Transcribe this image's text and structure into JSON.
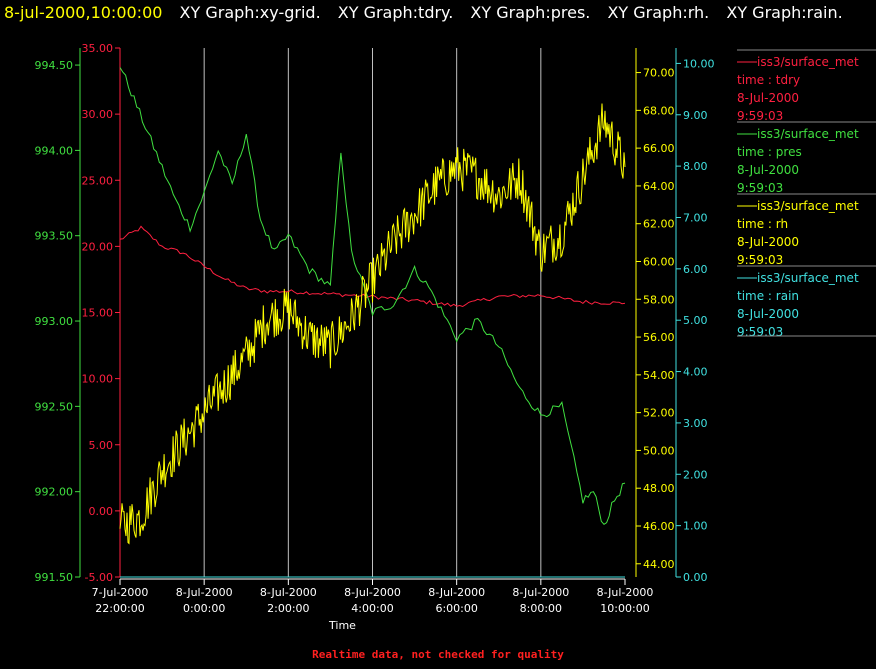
{
  "header": {
    "timestamp": "8-jul-2000,10:00:00",
    "graphs": [
      "XY Graph:xy-grid.",
      "XY Graph:tdry.",
      "XY Graph:pres.",
      "XY Graph:rh.",
      "XY Graph:rain."
    ]
  },
  "footer": {
    "text": "Realtime data, not checked for quality"
  },
  "colors": {
    "tdry": "#ff2040",
    "pres": "#40e040",
    "rh": "#ffff00",
    "rain": "#40e0e0",
    "grid": "#c0c0c0"
  },
  "legend": [
    {
      "source": "iss3/surface_met",
      "label": "time : tdry",
      "date": "8-Jul-2000",
      "time": "9:59:03",
      "color": "#ff2040"
    },
    {
      "source": "iss3/surface_met",
      "label": "time : pres",
      "date": "8-Jul-2000",
      "time": "9:59:03",
      "color": "#40e040"
    },
    {
      "source": "iss3/surface_met",
      "label": "time : rh",
      "date": "8-Jul-2000",
      "time": "9:59:03",
      "color": "#ffff00"
    },
    {
      "source": "iss3/surface_met",
      "label": "time : rain",
      "date": "8-Jul-2000",
      "time": "9:59:03",
      "color": "#40e0e0"
    }
  ],
  "chart_data": {
    "type": "line",
    "xlabel": "Time",
    "xlim": [
      "7-Jul-2000 22:00:00",
      "8-Jul-2000 10:00:00"
    ],
    "x_ticks": [
      {
        "date": "7-Jul-2000",
        "time": "22:00:00"
      },
      {
        "date": "8-Jul-2000",
        "time": "0:00:00"
      },
      {
        "date": "8-Jul-2000",
        "time": "2:00:00"
      },
      {
        "date": "8-Jul-2000",
        "time": "4:00:00"
      },
      {
        "date": "8-Jul-2000",
        "time": "6:00:00"
      },
      {
        "date": "8-Jul-2000",
        "time": "8:00:00"
      },
      {
        "date": "8-Jul-2000",
        "time": "10:00:00"
      }
    ],
    "grid": true,
    "axes": [
      {
        "name": "tdry",
        "ylim": [
          -5,
          35
        ],
        "ticks": [
          "-5.00",
          "0.00",
          "5.00",
          "10.00",
          "15.00",
          "20.00",
          "25.00",
          "30.00",
          "35.00"
        ]
      },
      {
        "name": "pres",
        "ylim": [
          991.5,
          994.6
        ],
        "ticks": [
          "991.50",
          "992.00",
          "992.50",
          "993.00",
          "993.50",
          "994.00",
          "994.50"
        ]
      },
      {
        "name": "rh",
        "ylim": [
          43.3,
          71.3
        ],
        "ticks": [
          "44.00",
          "46.00",
          "48.00",
          "50.00",
          "52.00",
          "54.00",
          "56.00",
          "58.00",
          "60.00",
          "62.00",
          "64.00",
          "66.00",
          "68.00",
          "70.00"
        ]
      },
      {
        "name": "rain",
        "ylim": [
          0,
          10.3
        ],
        "ticks": [
          "0.00",
          "1.00",
          "2.00",
          "3.00",
          "4.00",
          "5.00",
          "6.00",
          "7.00",
          "8.00",
          "9.00",
          "10.00"
        ]
      }
    ],
    "series": [
      {
        "name": "tdry",
        "axis": "tdry",
        "x": [
          "7-Jul-2000 22:00:00",
          "7-Jul-2000 22:30:00",
          "7-Jul-2000 23:00:00",
          "7-Jul-2000 23:30:00",
          "8-Jul-2000 00:00:00",
          "8-Jul-2000 00:30:00",
          "8-Jul-2000 01:00:00",
          "8-Jul-2000 01:30:00",
          "8-Jul-2000 02:00:00",
          "8-Jul-2000 03:00:00",
          "8-Jul-2000 04:00:00",
          "8-Jul-2000 05:00:00",
          "8-Jul-2000 06:00:00",
          "8-Jul-2000 07:00:00",
          "8-Jul-2000 08:00:00",
          "8-Jul-2000 09:00:00",
          "8-Jul-2000 10:00:00"
        ],
        "y": [
          20.5,
          21.4,
          20.0,
          19.5,
          18.5,
          17.5,
          16.8,
          16.6,
          16.6,
          16.4,
          16.2,
          15.9,
          15.5,
          16.2,
          16.3,
          15.8,
          15.7
        ]
      },
      {
        "name": "pres",
        "axis": "pres",
        "x": [
          "7-Jul-2000 22:00:00",
          "7-Jul-2000 22:20:00",
          "7-Jul-2000 22:40:00",
          "7-Jul-2000 23:00:00",
          "7-Jul-2000 23:20:00",
          "7-Jul-2000 23:40:00",
          "8-Jul-2000 00:00:00",
          "8-Jul-2000 00:20:00",
          "8-Jul-2000 00:40:00",
          "8-Jul-2000 01:00:00",
          "8-Jul-2000 01:20:00",
          "8-Jul-2000 01:40:00",
          "8-Jul-2000 02:00:00",
          "8-Jul-2000 02:30:00",
          "8-Jul-2000 03:00:00",
          "8-Jul-2000 03:15:00",
          "8-Jul-2000 03:30:00",
          "8-Jul-2000 04:00:00",
          "8-Jul-2000 04:30:00",
          "8-Jul-2000 05:00:00",
          "8-Jul-2000 05:20:00",
          "8-Jul-2000 06:00:00",
          "8-Jul-2000 06:30:00",
          "8-Jul-2000 07:00:00",
          "8-Jul-2000 07:30:00",
          "8-Jul-2000 08:00:00",
          "8-Jul-2000 08:30:00",
          "8-Jul-2000 09:00:00",
          "8-Jul-2000 09:15:00",
          "8-Jul-2000 09:30:00",
          "8-Jul-2000 09:45:00",
          "8-Jul-2000 10:00:00"
        ],
        "y": [
          994.5,
          994.3,
          994.1,
          993.9,
          993.7,
          993.55,
          993.75,
          994.0,
          993.8,
          994.1,
          993.6,
          993.4,
          993.5,
          993.3,
          993.2,
          994.0,
          993.4,
          993.05,
          993.1,
          993.3,
          993.2,
          992.9,
          993.0,
          992.85,
          992.6,
          992.45,
          992.5,
          991.95,
          992.0,
          991.8,
          991.95,
          992.05
        ]
      },
      {
        "name": "rh",
        "axis": "rh",
        "x": [
          "7-Jul-2000 22:00:00",
          "7-Jul-2000 22:30:00",
          "7-Jul-2000 23:00:00",
          "7-Jul-2000 23:30:00",
          "8-Jul-2000 00:00:00",
          "8-Jul-2000 00:30:00",
          "8-Jul-2000 01:00:00",
          "8-Jul-2000 01:30:00",
          "8-Jul-2000 02:00:00",
          "8-Jul-2000 02:30:00",
          "8-Jul-2000 03:00:00",
          "8-Jul-2000 03:30:00",
          "8-Jul-2000 04:00:00",
          "8-Jul-2000 04:30:00",
          "8-Jul-2000 05:00:00",
          "8-Jul-2000 05:30:00",
          "8-Jul-2000 06:00:00",
          "8-Jul-2000 06:30:00",
          "8-Jul-2000 07:00:00",
          "8-Jul-2000 07:30:00",
          "8-Jul-2000 08:00:00",
          "8-Jul-2000 08:30:00",
          "8-Jul-2000 09:00:00",
          "8-Jul-2000 09:30:00",
          "8-Jul-2000 10:00:00"
        ],
        "y": [
          46.0,
          46.5,
          49.0,
          50.5,
          52.0,
          53.5,
          55.0,
          57.0,
          57.5,
          56.0,
          55.5,
          57.0,
          59.0,
          61.0,
          62.5,
          64.0,
          65.0,
          64.5,
          63.5,
          64.5,
          60.5,
          61.5,
          64.5,
          67.5,
          65.0
        ]
      },
      {
        "name": "rain",
        "axis": "rain",
        "x": [
          "7-Jul-2000 22:00:00",
          "8-Jul-2000 10:00:00"
        ],
        "y": [
          0.0,
          0.0
        ]
      }
    ]
  }
}
